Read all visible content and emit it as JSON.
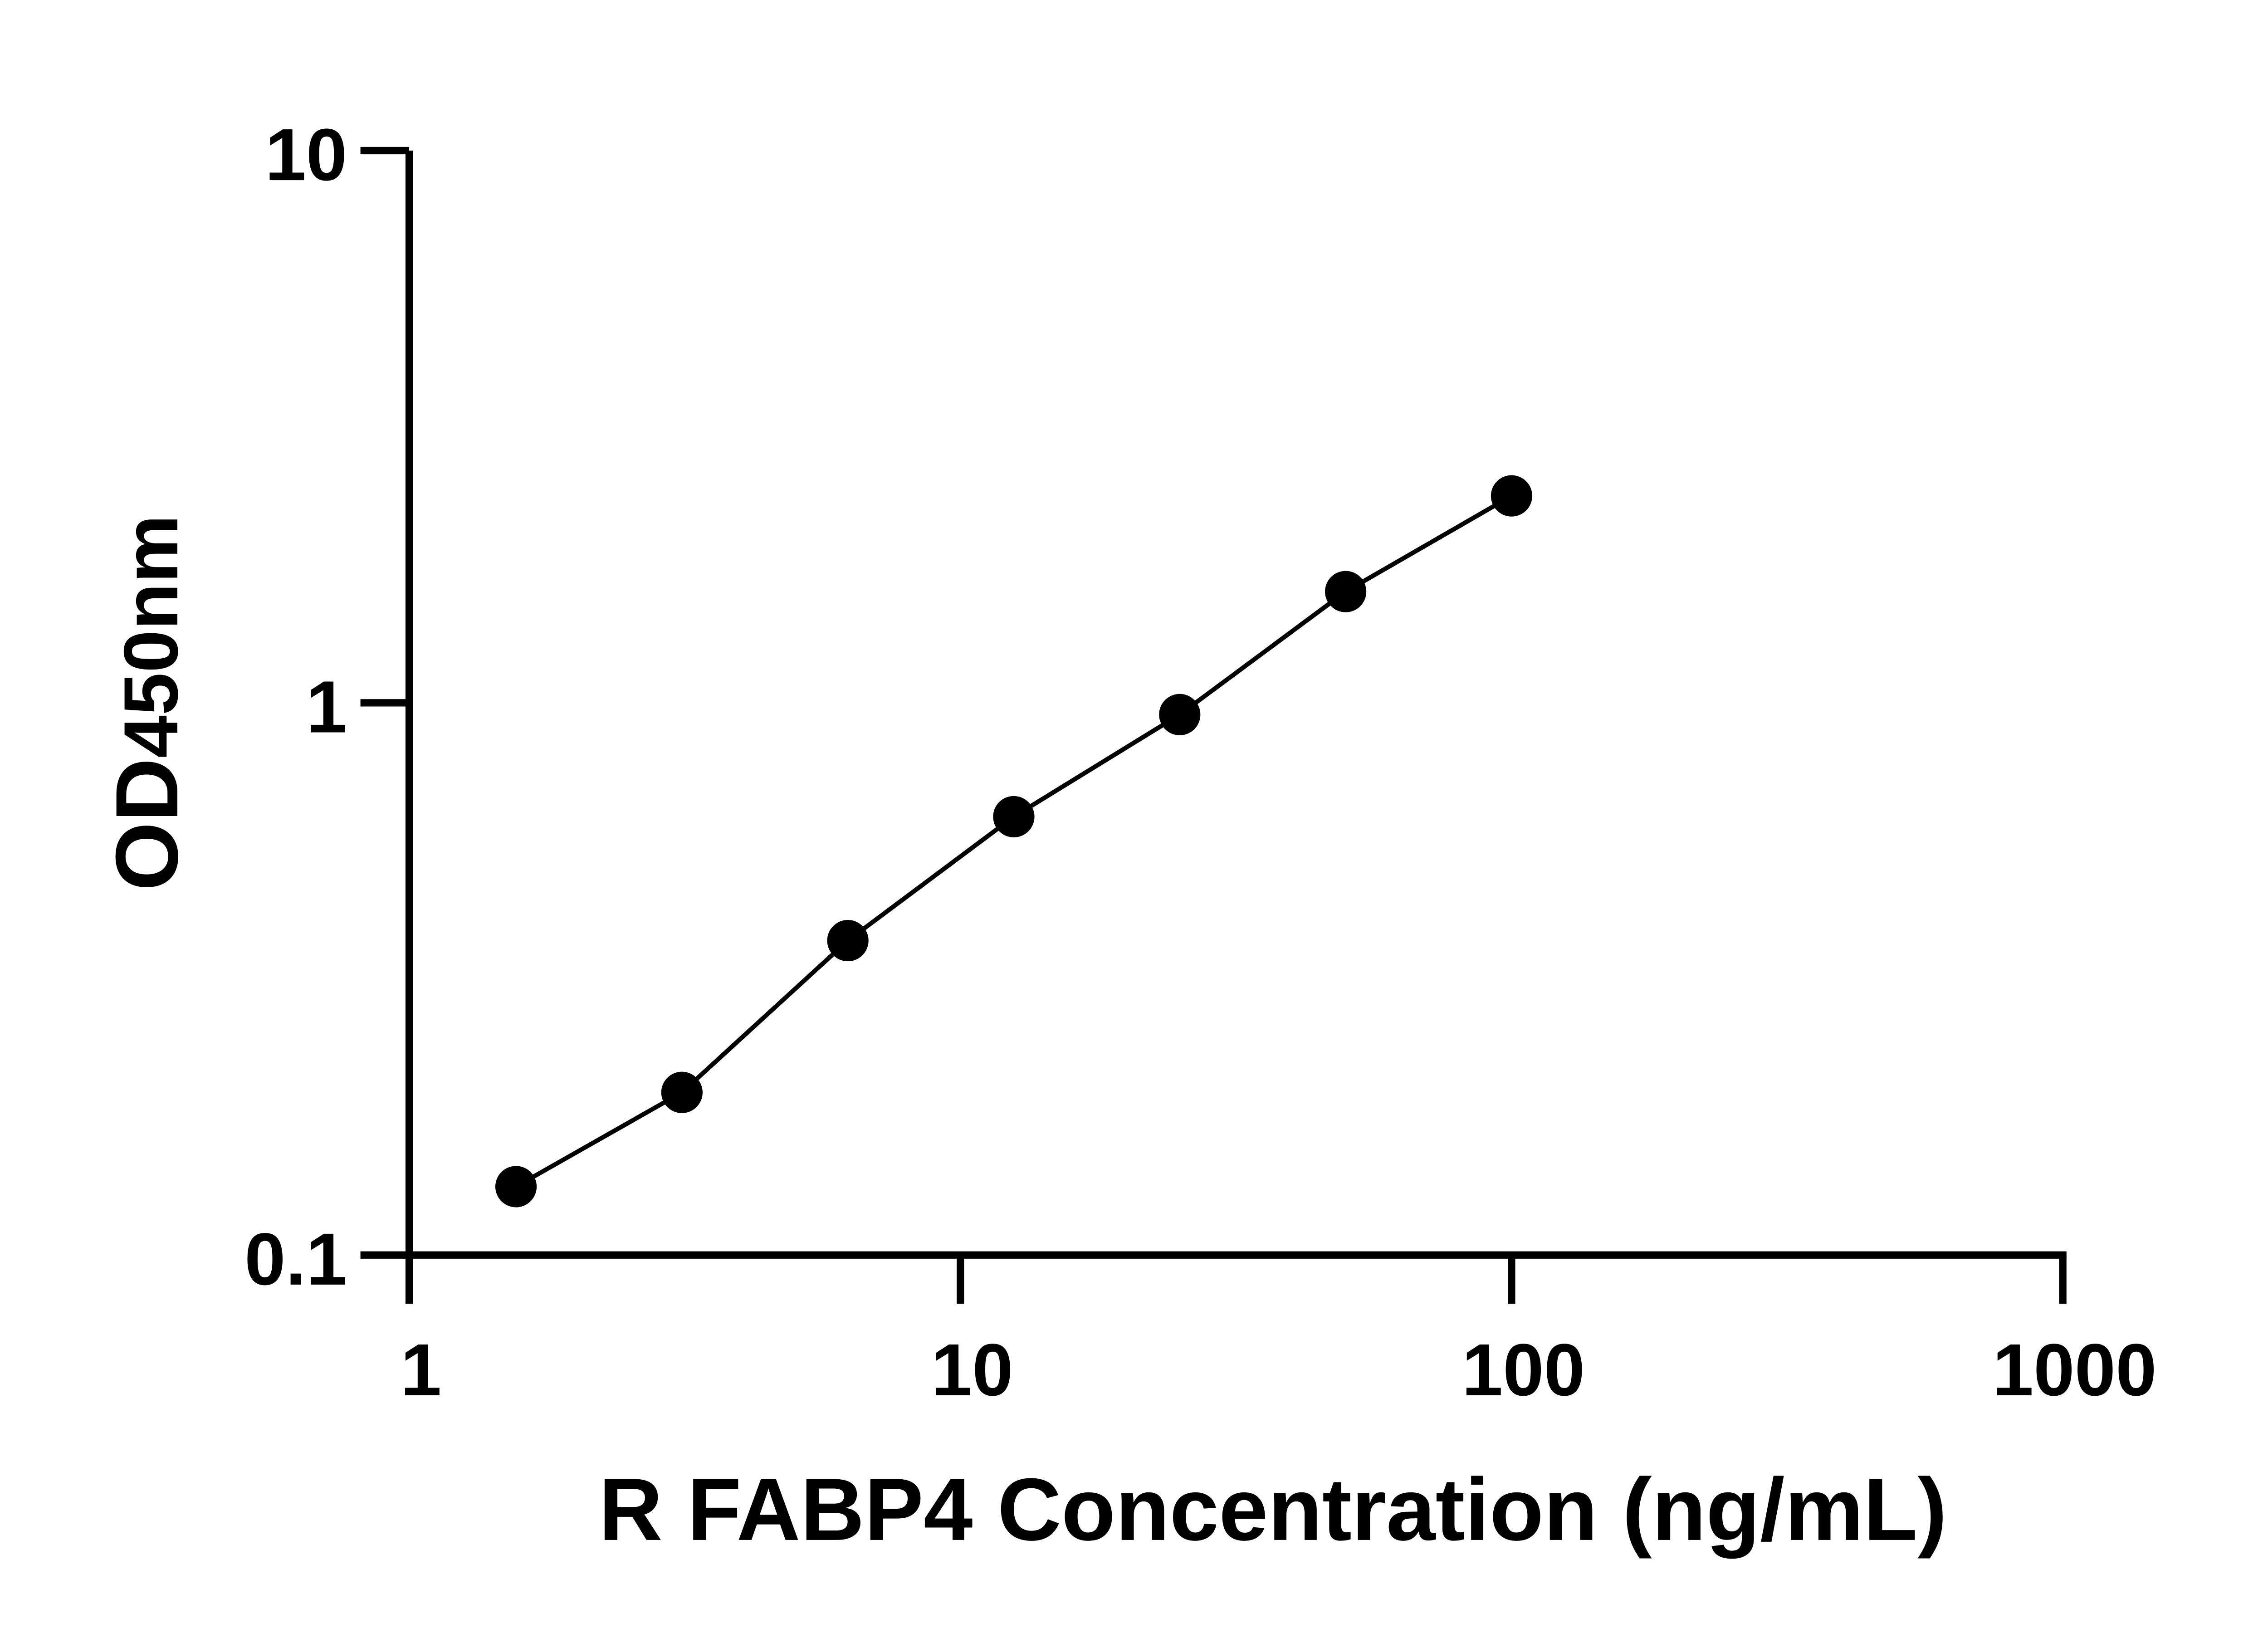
{
  "chart_data": {
    "type": "scatter",
    "xlabel": "R FABP4 Concentration (ng/mL)",
    "ylabel_main": "OD",
    "ylabel_sub": "450nm",
    "x_scale": "log",
    "y_scale": "log",
    "xlim": [
      1,
      1000
    ],
    "ylim": [
      0.1,
      10
    ],
    "x_ticks": [
      "1",
      "10",
      "100",
      "1000"
    ],
    "y_ticks": [
      "0.1",
      "1",
      "10"
    ],
    "grid": false,
    "series": [
      {
        "x": [
          1.5625,
          3.125,
          6.25,
          12.5,
          25,
          50,
          100
        ],
        "y": [
          0.133,
          0.197,
          0.371,
          0.622,
          0.952,
          1.59,
          2.37
        ],
        "marker": "circle",
        "line": "fitted-curve"
      }
    ],
    "colors": {
      "marks": "#000000"
    }
  }
}
